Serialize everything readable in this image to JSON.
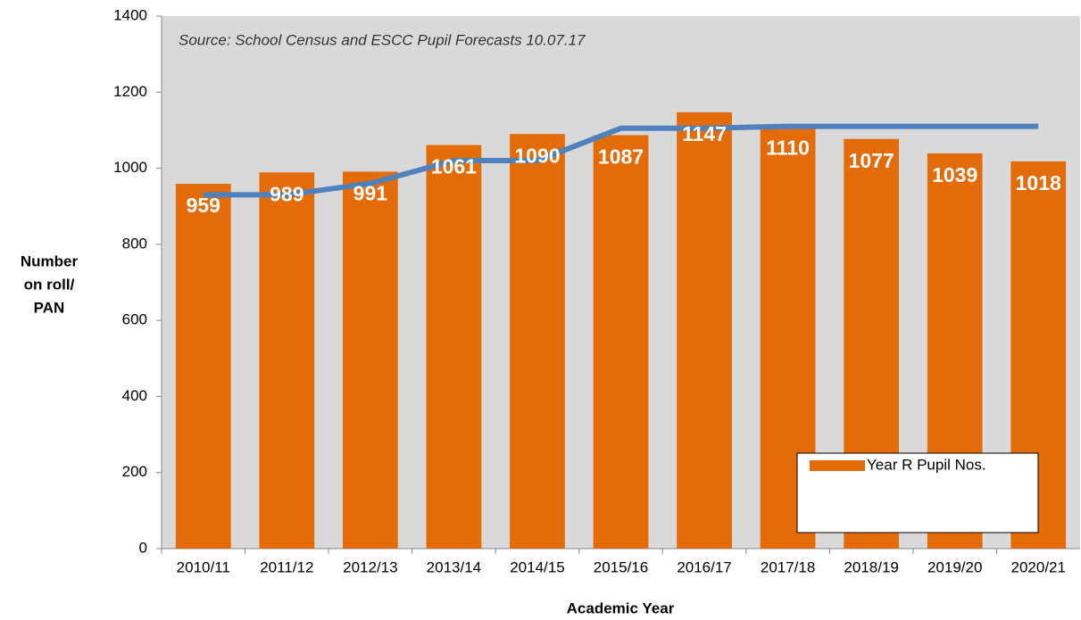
{
  "chart_data": {
    "type": "bar",
    "annotation": "Source: School Census and ESCC Pupil Forecasts 10.07.17",
    "xlabel": "Academic Year",
    "ylabel": [
      "Number",
      "on roll/",
      "PAN"
    ],
    "categories": [
      "2010/11",
      "2011/12",
      "2012/13",
      "2013/14",
      "2014/15",
      "2015/16",
      "2016/17",
      "2017/18",
      "2018/19",
      "2019/20",
      "2020/21"
    ],
    "series": [
      {
        "name": "Year R Pupil Nos.",
        "type": "bar",
        "color": "#e36c09",
        "values": [
          959,
          989,
          991,
          1061,
          1090,
          1087,
          1147,
          1110,
          1077,
          1039,
          1018
        ]
      },
      {
        "type": "line",
        "color": "#4f81bd",
        "values": [
          930,
          930,
          960,
          1020,
          1020,
          1105,
          1105,
          1110,
          1110,
          1110,
          1110
        ]
      }
    ],
    "ylim": [
      0,
      1400
    ],
    "yticks": [
      0,
      200,
      400,
      600,
      800,
      1000,
      1200,
      1400
    ],
    "legend": "lower right"
  }
}
